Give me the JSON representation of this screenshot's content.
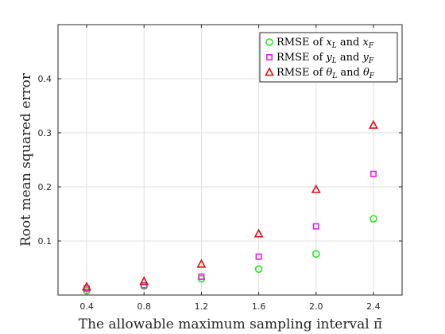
{
  "chart_data": {
    "type": "scatter",
    "xlabel": "The allowable maximum sampling interval π̄",
    "ylabel": "Root mean squared error",
    "xlim": [
      0.2,
      2.6
    ],
    "ylim": [
      0,
      0.5
    ],
    "x_ticks": [
      0.4,
      0.8,
      1.2,
      1.6,
      2.0,
      2.4
    ],
    "x_tick_labels": [
      "0.4",
      "0.8",
      "1.2",
      "1.6",
      "2.0",
      "2.4"
    ],
    "y_ticks": [
      0.1,
      0.2,
      0.3,
      0.4
    ],
    "y_tick_labels": [
      "0.1",
      "0.2",
      "0.3",
      "0.4"
    ],
    "grid": true,
    "legend_position": "top-right",
    "x": [
      0.4,
      0.8,
      1.2,
      1.6,
      2.0,
      2.4
    ],
    "series": [
      {
        "name": "RMSE of x_L and x_F",
        "legend_prefix": "RMSE of ",
        "var1": "x",
        "sub1": "L",
        "connector": " and ",
        "var2": "x",
        "sub2": "F",
        "marker": "circle",
        "color": "#22e822",
        "values": [
          0.008,
          0.017,
          0.03,
          0.048,
          0.076,
          0.141
        ]
      },
      {
        "name": "RMSE of y_L and y_F",
        "legend_prefix": "RMSE of ",
        "var1": "y",
        "sub1": "L",
        "connector": " and ",
        "var2": "y",
        "sub2": "F",
        "marker": "square",
        "color": "#e81ee8",
        "values": [
          0.012,
          0.018,
          0.034,
          0.071,
          0.127,
          0.224
        ]
      },
      {
        "name": "RMSE of θ_L and θ_F",
        "legend_prefix": "RMSE of ",
        "var1": "θ",
        "sub1": "L",
        "connector": " and ",
        "var2": "θ",
        "sub2": "F",
        "marker": "triangle",
        "color": "#e01010",
        "values": [
          0.015,
          0.025,
          0.057,
          0.113,
          0.195,
          0.314
        ]
      }
    ]
  }
}
